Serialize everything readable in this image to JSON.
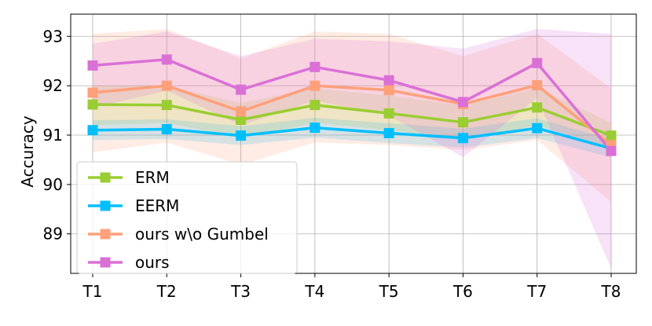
{
  "chart_data": {
    "type": "line",
    "title": "",
    "xlabel": "",
    "ylabel": "Accuracy",
    "categories": [
      "T1",
      "T2",
      "T3",
      "T4",
      "T5",
      "T6",
      "T7",
      "T8"
    ],
    "yticks": [
      "89",
      "90",
      "91",
      "92",
      "93"
    ],
    "ylim": [
      88.2,
      93.45
    ],
    "grid": true,
    "legend_position": "lower-left",
    "series": [
      {
        "name": "ERM",
        "color": "#9ACD32",
        "values": [
          91.62,
          91.61,
          91.31,
          91.61,
          91.44,
          91.26,
          91.56,
          90.99
        ],
        "band_low": [
          91.2,
          91.25,
          90.95,
          91.25,
          91.1,
          90.9,
          91.2,
          90.75
        ],
        "band_high": [
          92.0,
          92.0,
          91.65,
          91.95,
          91.8,
          91.6,
          91.95,
          91.25
        ]
      },
      {
        "name": "EERM",
        "color": "#00BFFF",
        "values": [
          91.1,
          91.12,
          90.99,
          91.15,
          91.04,
          90.94,
          91.14,
          90.73
        ],
        "band_low": [
          90.9,
          90.92,
          90.8,
          90.95,
          90.84,
          90.75,
          90.94,
          90.55
        ],
        "band_high": [
          91.3,
          91.32,
          91.18,
          91.35,
          91.24,
          91.13,
          91.34,
          90.91
        ]
      },
      {
        "name": "ours w\\o Gumbel",
        "color": "#FFA07A",
        "values": [
          91.86,
          92.0,
          91.48,
          92.0,
          91.91,
          91.63,
          92.01,
          90.8
        ],
        "band_low": [
          90.65,
          90.85,
          90.4,
          90.85,
          90.8,
          90.7,
          90.9,
          89.65
        ],
        "band_high": [
          93.05,
          93.15,
          92.55,
          93.1,
          93.05,
          92.6,
          93.05,
          91.95
        ]
      },
      {
        "name": "ours",
        "color": "#DA70D6",
        "values": [
          92.41,
          92.53,
          91.92,
          92.38,
          92.11,
          91.67,
          92.46,
          90.68
        ],
        "band_low": [
          91.55,
          91.9,
          91.2,
          91.7,
          91.4,
          90.55,
          91.75,
          88.3
        ],
        "band_high": [
          92.85,
          93.1,
          92.6,
          92.95,
          92.9,
          92.75,
          93.15,
          93.05
        ]
      }
    ]
  }
}
